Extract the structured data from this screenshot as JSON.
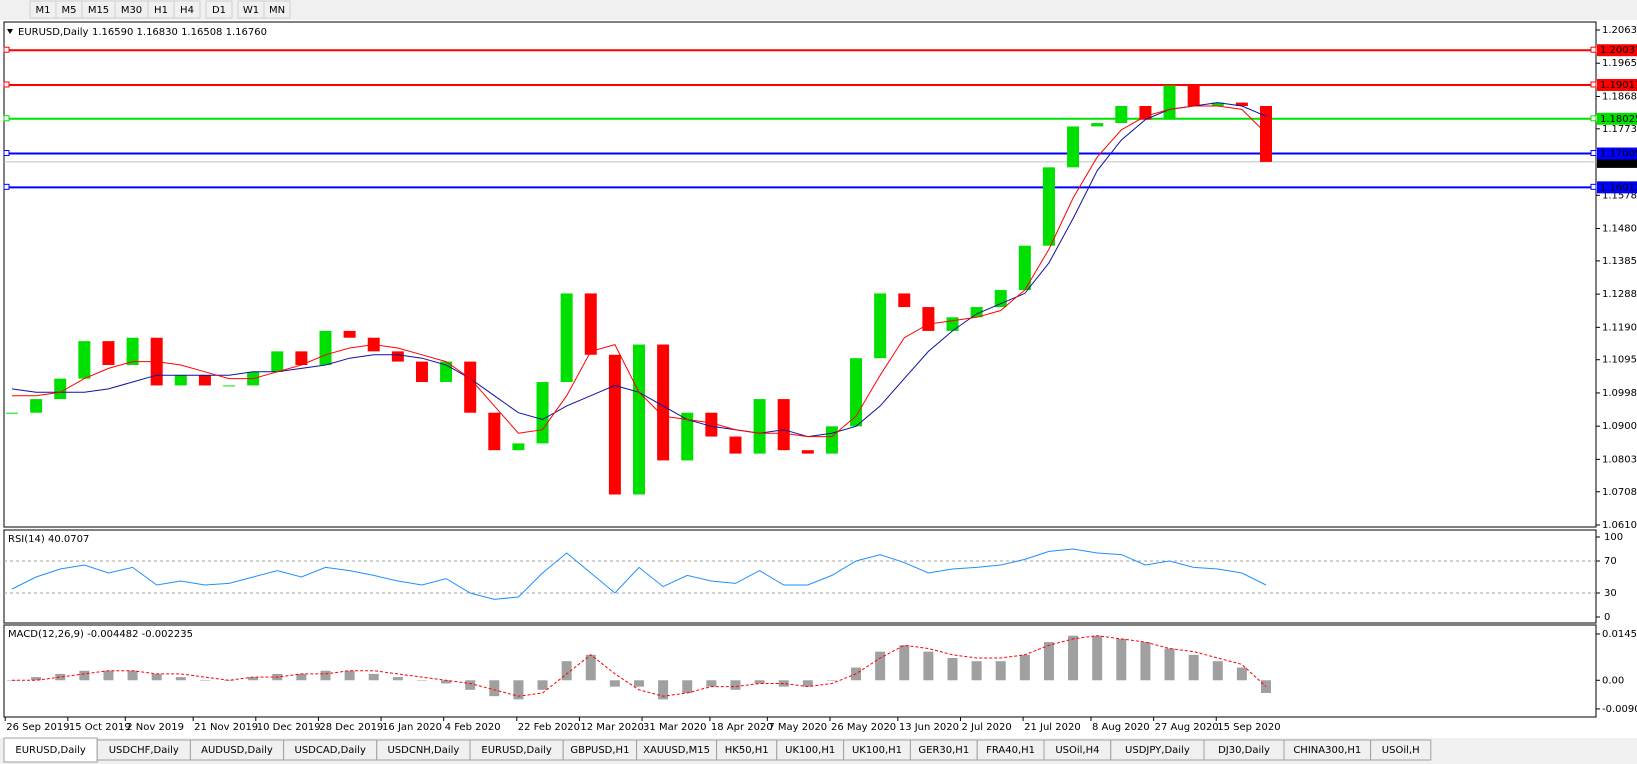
{
  "toolbar": {
    "timeframes": [
      "M1",
      "M5",
      "M15",
      "M30",
      "H1",
      "H4",
      "D1",
      "W1",
      "MN"
    ]
  },
  "chart": {
    "header": {
      "symbol": "EURUSD,Daily",
      "ohlc": "1.16590 1.16830 1.16508 1.16760"
    },
    "price": {
      "ylim": [
        1.06105,
        1.2063
      ],
      "yticks": [
        {
          "value": 1.2063,
          "label": "1.20630"
        },
        {
          "value": 1.19655,
          "label": "1.19655"
        },
        {
          "value": 1.1868,
          "label": "1.18680"
        },
        {
          "value": 1.1773,
          "label": "1.17730"
        },
        {
          "value": 1.1578,
          "label": "1.15780"
        },
        {
          "value": 1.14805,
          "label": "1.14805"
        },
        {
          "value": 1.13855,
          "label": "1.13855"
        },
        {
          "value": 1.1288,
          "label": "1.12880"
        },
        {
          "value": 1.11905,
          "label": "1.11905"
        },
        {
          "value": 1.10955,
          "label": "1.10955"
        },
        {
          "value": 1.0998,
          "label": "1.09980"
        },
        {
          "value": 1.09005,
          "label": "1.09005"
        },
        {
          "value": 1.0803,
          "label": "1.08030"
        },
        {
          "value": 1.0708,
          "label": "1.07080"
        },
        {
          "value": 1.06105,
          "label": "1.06105"
        }
      ],
      "levels": [
        {
          "value": 1.20037,
          "label": "1.20037",
          "color": "#ff0000"
        },
        {
          "value": 1.19017,
          "label": "1.19017",
          "color": "#ff0000"
        },
        {
          "value": 1.18025,
          "label": "1.18025",
          "color": "#00e000"
        },
        {
          "value": 1.17005,
          "label": "1.17005",
          "color": "#0000ff"
        },
        {
          "value": 1.16013,
          "label": "1.16013",
          "color": "#0000ff"
        }
      ],
      "current": {
        "value": 1.1676,
        "label": "1.16760"
      },
      "closes": [
        1.094,
        1.098,
        1.104,
        1.115,
        1.108,
        1.116,
        1.102,
        1.105,
        1.102,
        1.102,
        1.106,
        1.112,
        1.108,
        1.118,
        1.116,
        1.112,
        1.109,
        1.103,
        1.109,
        1.094,
        1.083,
        1.085,
        1.103,
        1.129,
        1.111,
        1.07,
        1.114,
        1.08,
        1.094,
        1.087,
        1.082,
        1.098,
        1.083,
        1.082,
        1.09,
        1.11,
        1.129,
        1.125,
        1.118,
        1.122,
        1.125,
        1.13,
        1.143,
        1.166,
        1.178,
        1.179,
        1.184,
        1.18,
        1.19,
        1.184,
        1.185,
        1.184,
        1.1676
      ],
      "up_color": "#00e000",
      "down_color": "#ff0000",
      "ma_fast": {
        "color": "#ff0000",
        "values": [
          1.099,
          1.099,
          1.1,
          1.104,
          1.107,
          1.109,
          1.109,
          1.108,
          1.106,
          1.104,
          1.104,
          1.106,
          1.108,
          1.111,
          1.113,
          1.114,
          1.113,
          1.111,
          1.109,
          1.104,
          1.096,
          1.088,
          1.089,
          1.099,
          1.112,
          1.114,
          1.1,
          1.093,
          1.092,
          1.091,
          1.089,
          1.088,
          1.088,
          1.087,
          1.087,
          1.093,
          1.105,
          1.116,
          1.12,
          1.121,
          1.122,
          1.124,
          1.13,
          1.142,
          1.157,
          1.169,
          1.177,
          1.181,
          1.183,
          1.184,
          1.184,
          1.183,
          1.176
        ]
      },
      "ma_slow": {
        "color": "#1010a0",
        "values": [
          1.101,
          1.1,
          1.1,
          1.1,
          1.101,
          1.103,
          1.105,
          1.105,
          1.105,
          1.105,
          1.106,
          1.106,
          1.107,
          1.108,
          1.11,
          1.111,
          1.111,
          1.11,
          1.108,
          1.104,
          1.099,
          1.094,
          1.092,
          1.096,
          1.099,
          1.102,
          1.1,
          1.096,
          1.092,
          1.09,
          1.089,
          1.088,
          1.089,
          1.087,
          1.088,
          1.09,
          1.096,
          1.104,
          1.112,
          1.118,
          1.123,
          1.126,
          1.129,
          1.138,
          1.151,
          1.165,
          1.174,
          1.18,
          1.183,
          1.184,
          1.185,
          1.184,
          1.181
        ]
      }
    },
    "rsi": {
      "label": "RSI(14) 40.0707",
      "color": "#1e90ff",
      "ylim": [
        0,
        100
      ],
      "yticks": [
        100,
        70,
        30,
        0
      ],
      "levels": [
        70,
        30
      ],
      "values": [
        35,
        50,
        60,
        65,
        55,
        62,
        40,
        45,
        40,
        42,
        50,
        58,
        50,
        62,
        58,
        52,
        45,
        40,
        48,
        30,
        22,
        25,
        55,
        80,
        55,
        30,
        62,
        38,
        52,
        45,
        42,
        58,
        40,
        40,
        52,
        70,
        78,
        68,
        55,
        60,
        62,
        65,
        72,
        82,
        85,
        80,
        78,
        65,
        70,
        62,
        60,
        55,
        40
      ]
    },
    "macd": {
      "label": "MACD(12,26,9) -0.004482 -0.002235",
      "ylim": [
        -0.0106,
        0.0158
      ],
      "yticks": [
        {
          "value": 0.014556,
          "label": "0.014556"
        },
        {
          "value": 0,
          "label": "0.00"
        },
        {
          "value": -0.009,
          "label": "-0.0090"
        }
      ],
      "histogram": [
        0.0,
        0.001,
        0.002,
        0.003,
        0.003,
        0.003,
        0.002,
        0.001,
        0.0,
        0.0,
        0.001,
        0.002,
        0.002,
        0.003,
        0.003,
        0.002,
        0.001,
        0.0,
        -0.001,
        -0.003,
        -0.005,
        -0.006,
        -0.003,
        0.006,
        0.008,
        -0.002,
        -0.002,
        -0.006,
        -0.004,
        -0.002,
        -0.003,
        -0.001,
        -0.002,
        -0.002,
        0.0,
        0.004,
        0.009,
        0.011,
        0.009,
        0.007,
        0.006,
        0.006,
        0.008,
        0.012,
        0.014,
        0.014,
        0.013,
        0.012,
        0.01,
        0.008,
        0.006,
        0.004,
        -0.004
      ],
      "signal": [
        0.0,
        0.0,
        0.001,
        0.002,
        0.003,
        0.003,
        0.002,
        0.002,
        0.001,
        0.0,
        0.001,
        0.001,
        0.002,
        0.002,
        0.003,
        0.003,
        0.002,
        0.001,
        0.0,
        -0.001,
        -0.003,
        -0.005,
        -0.004,
        0.002,
        0.008,
        0.002,
        -0.003,
        -0.005,
        -0.004,
        -0.002,
        -0.002,
        -0.001,
        -0.001,
        -0.002,
        -0.001,
        0.002,
        0.007,
        0.011,
        0.01,
        0.008,
        0.007,
        0.007,
        0.008,
        0.011,
        0.013,
        0.014,
        0.013,
        0.012,
        0.01,
        0.009,
        0.007,
        0.005,
        -0.002
      ],
      "hist_color": "#a0a0a0",
      "signal_color": "#ff0000"
    },
    "dates": [
      "26 Sep 2019",
      "15 Oct 2019",
      "2 Nov 2019",
      "21 Nov 2019",
      "10 Dec 2019",
      "28 Dec 2019",
      "16 Jan 2020",
      "4 Feb 2020",
      "22 Feb 2020",
      "12 Mar 2020",
      "31 Mar 2020",
      "18 Apr 2020",
      "7 May 2020",
      "26 May 2020",
      "13 Jun 2020",
      "2 Jul 2020",
      "21 Jul 2020",
      "8 Aug 2020",
      "27 Aug 2020",
      "15 Sep 2020"
    ]
  },
  "tabs": [
    "EURUSD,Daily",
    "USDCHF,Daily",
    "AUDUSD,Daily",
    "USDCAD,Daily",
    "USDCNH,Daily",
    "EURUSD,Daily",
    "GBPUSD,H1",
    "XAUUSD,M15",
    "HK50,H1",
    "UK100,H1",
    "UK100,H1",
    "GER30,H1",
    "FRA40,H1",
    "USOil,H4",
    "USDJPY,Daily",
    "DJ30,Daily",
    "CHINA300,H1",
    "USOil,H"
  ]
}
